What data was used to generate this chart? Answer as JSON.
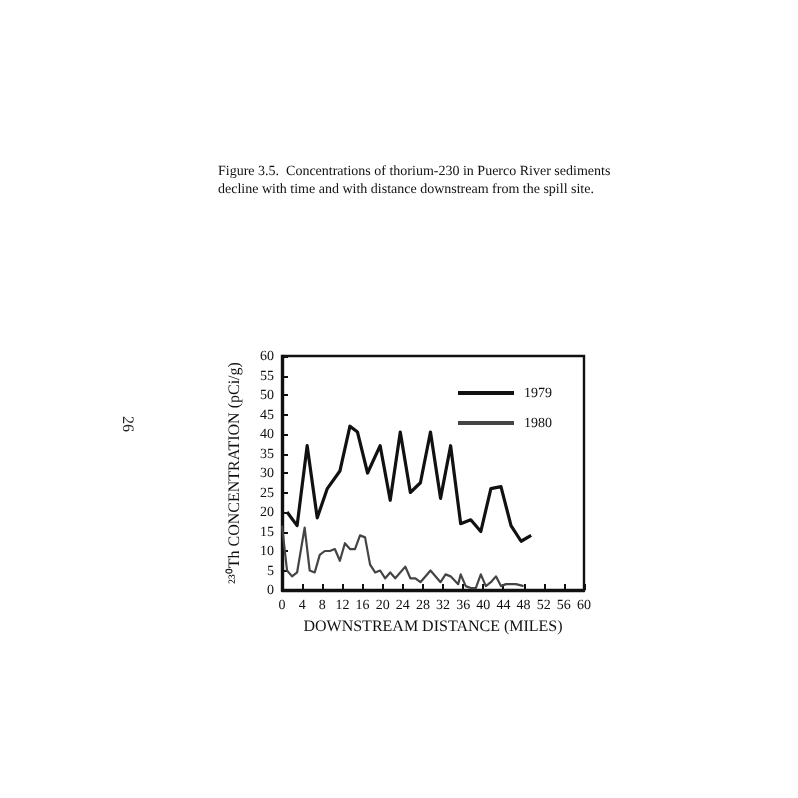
{
  "chart_data": {
    "type": "line",
    "title": "Figure 3.5.  Concentrations of thorium-230 in Puerco River sediments decline with time and with distance downstream from the spill site.",
    "xlabel": "DOWNSTREAM DISTANCE (MILES)",
    "ylabel": "²³⁰Th CONCENTRATION (pCi/g)",
    "annotations": [
      "26"
    ],
    "series": [
      {
        "name": "1979",
        "color": "#111111",
        "x": [
          1,
          3,
          5,
          7,
          9,
          11.5,
          13.5,
          15,
          17,
          19.5,
          21.5,
          23.5,
          25.5,
          27.5,
          29.5,
          31.5,
          33.5,
          35.5,
          37.5,
          39.5,
          41.5,
          43.5,
          45.5,
          47.5,
          49.5
        ],
        "values": [
          20,
          16.5,
          37,
          18.5,
          26,
          30.5,
          42,
          40.5,
          30,
          37,
          23,
          40.5,
          25,
          27.5,
          40.5,
          23.5,
          37,
          17,
          18,
          15,
          26,
          26.5,
          16.5,
          12.5,
          14
        ]
      },
      {
        "name": "1980",
        "color": "#444444",
        "x": [
          0,
          1,
          2,
          3,
          4.5,
          5.5,
          6.5,
          7.5,
          8.5,
          9.5,
          10.5,
          11.5,
          12.5,
          13.5,
          14.5,
          15.5,
          16.5,
          17.5,
          18.5,
          19.5,
          20.5,
          21.5,
          22.5,
          24.5,
          25.5,
          26.5,
          27.5,
          29.5,
          31.5,
          32.5,
          33.5,
          35,
          35.5,
          36.5,
          37.5,
          38.5,
          39.5,
          40.5,
          41.5,
          42.5,
          43.5,
          44.5,
          46.5,
          48
        ],
        "values": [
          16.5,
          5,
          3.5,
          4.5,
          16,
          5,
          4.5,
          9,
          10,
          10,
          10.5,
          7.5,
          12,
          10.5,
          10.5,
          14,
          13.5,
          6.5,
          4.5,
          5,
          3,
          4.5,
          3,
          6,
          3,
          3,
          2,
          5,
          2,
          4,
          3.5,
          1.5,
          4,
          1,
          0.5,
          0.5,
          4,
          1,
          2,
          3.5,
          1,
          1.5,
          1.5,
          1
        ]
      }
    ],
    "xlim": [
      0,
      60
    ],
    "xticks": [
      0,
      4,
      8,
      12,
      16,
      20,
      24,
      28,
      32,
      36,
      40,
      44,
      48,
      52,
      56,
      60
    ],
    "ylim": [
      0,
      60
    ],
    "yticks": [
      0,
      5,
      10,
      15,
      20,
      25,
      30,
      35,
      40,
      45,
      50,
      55,
      60
    ],
    "legend": "top right",
    "marker": "none",
    "line_style": "solid"
  }
}
